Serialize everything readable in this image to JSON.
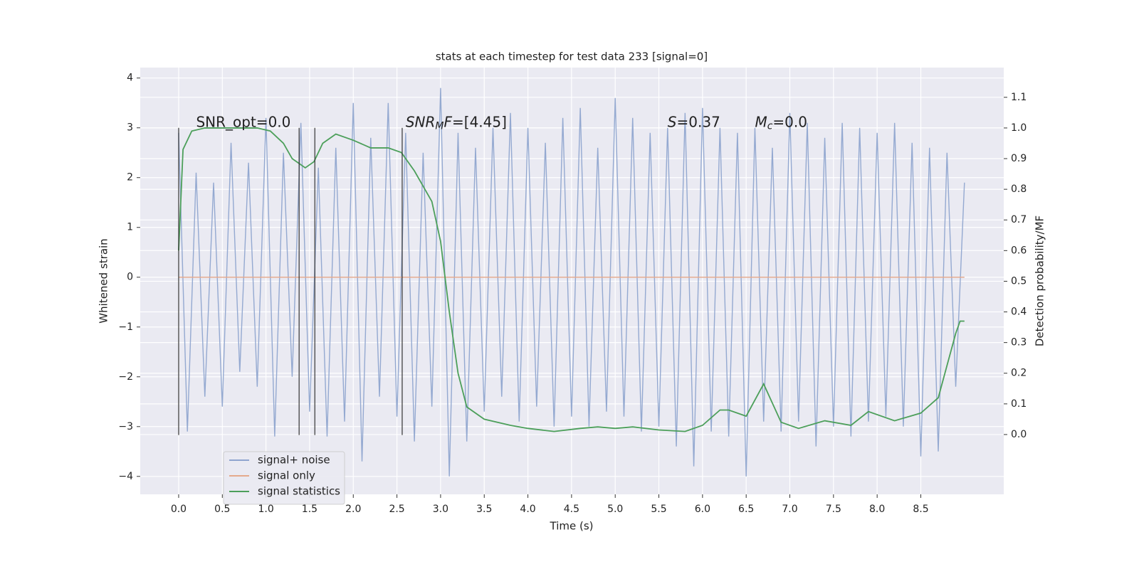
{
  "chart_data": {
    "type": "line",
    "title": "stats at each timestep for test data 233 [signal=0]",
    "xlabel": "Time (s)",
    "ylabel": "Whitened strain",
    "y2label": "Detection probability/MF",
    "xlim": [
      -0.44,
      9.45
    ],
    "ylim": [
      -4.36,
      4.21
    ],
    "y2lim": [
      -0.195,
      1.197
    ],
    "xticks": [
      {
        "value": 0,
        "label": "0.0"
      },
      {
        "value": 0.5,
        "label": "0.5"
      },
      {
        "value": 1,
        "label": "1.0"
      },
      {
        "value": 1.5,
        "label": "1.5"
      },
      {
        "value": 2,
        "label": "2.0"
      },
      {
        "value": 2.5,
        "label": "2.5"
      },
      {
        "value": 3,
        "label": "3.0"
      },
      {
        "value": 3.5,
        "label": "3.5"
      },
      {
        "value": 4,
        "label": "4.0"
      },
      {
        "value": 4.5,
        "label": "4.5"
      },
      {
        "value": 5,
        "label": "5.0"
      },
      {
        "value": 5.5,
        "label": "5.5"
      },
      {
        "value": 6,
        "label": "6.0"
      },
      {
        "value": 6.5,
        "label": "6.5"
      },
      {
        "value": 7,
        "label": "7.0"
      },
      {
        "value": 7.5,
        "label": "7.5"
      },
      {
        "value": 8,
        "label": "8.0"
      },
      {
        "value": 8.5,
        "label": "8.5"
      }
    ],
    "yticks": [
      {
        "value": -4,
        "label": "−4"
      },
      {
        "value": -3,
        "label": "−3"
      },
      {
        "value": -2,
        "label": "−2"
      },
      {
        "value": -1,
        "label": "−1"
      },
      0,
      1,
      2,
      3,
      4
    ],
    "y2ticks": [
      {
        "value": 0,
        "label": "0.0"
      },
      {
        "value": 0.1,
        "label": "0.1"
      },
      {
        "value": 0.2,
        "label": "0.2"
      },
      {
        "value": 0.3,
        "label": "0.3"
      },
      {
        "value": 0.4,
        "label": "0.4"
      },
      {
        "value": 0.5,
        "label": "0.5"
      },
      {
        "value": 0.6,
        "label": "0.6"
      },
      {
        "value": 0.7,
        "label": "0.7"
      },
      {
        "value": 0.8,
        "label": "0.8"
      },
      {
        "value": 0.9,
        "label": "0.9"
      },
      {
        "value": 1,
        "label": "1.0"
      },
      {
        "value": 1.1,
        "label": "1.1"
      }
    ],
    "grid": true,
    "legend": "lower left",
    "series": [
      {
        "name": "signal+ noise",
        "color": "#8fa5cf",
        "x": [
          0,
          0.1,
          0.2,
          0.3,
          0.4,
          0.5,
          0.6,
          0.7,
          0.8,
          0.9,
          1,
          1.1,
          1.2,
          1.3,
          1.4,
          1.5,
          1.6,
          1.7,
          1.8,
          1.9,
          2,
          2.1,
          2.2,
          2.3,
          2.4,
          2.5,
          2.6,
          2.7,
          2.8,
          2.9,
          3,
          3.1,
          3.2,
          3.3,
          3.4,
          3.5,
          3.6,
          3.7,
          3.8,
          3.9,
          4,
          4.1,
          4.2,
          4.3,
          4.4,
          4.5,
          4.6,
          4.7,
          4.8,
          4.9,
          5,
          5.1,
          5.2,
          5.3,
          5.4,
          5.5,
          5.6,
          5.7,
          5.8,
          5.9,
          6,
          6.1,
          6.2,
          6.3,
          6.4,
          6.5,
          6.6,
          6.7,
          6.8,
          6.9,
          7,
          7.1,
          7.2,
          7.3,
          7.4,
          7.5,
          7.6,
          7.7,
          7.8,
          7.9,
          8,
          8.1,
          8.2,
          8.3,
          8.4,
          8.5,
          8.6,
          8.7,
          8.8,
          8.9,
          9
        ],
        "values": [
          2.9,
          -3.1,
          2.1,
          -2.4,
          1.9,
          -2.6,
          2.7,
          -1.9,
          2.3,
          -2.2,
          3.2,
          -3.2,
          2.5,
          -2.0,
          3.1,
          -2.7,
          2.2,
          -3.2,
          2.6,
          -2.9,
          3.5,
          -3.7,
          2.8,
          -2.4,
          3.5,
          -2.8,
          2.9,
          -3.3,
          2.5,
          -2.6,
          3.8,
          -4.0,
          2.9,
          -3.3,
          2.6,
          -2.7,
          3.0,
          -2.4,
          3.3,
          -2.9,
          3.0,
          -2.6,
          2.7,
          -3.0,
          3.2,
          -2.8,
          3.4,
          -3.0,
          2.6,
          -2.7,
          3.6,
          -2.8,
          3.2,
          -3.1,
          2.9,
          -3.0,
          3.0,
          -3.4,
          3.3,
          -3.8,
          3.4,
          -3.1,
          3.0,
          -3.2,
          2.9,
          -4.0,
          3.0,
          -2.9,
          2.6,
          -3.1,
          3.3,
          -2.9,
          3.1,
          -3.4,
          2.8,
          -3.0,
          3.1,
          -3.2,
          3.0,
          -2.9,
          2.9,
          -2.8,
          3.1,
          -3.0,
          2.7,
          -3.6,
          2.6,
          -3.5,
          2.5,
          -2.2,
          1.9
        ]
      },
      {
        "name": "signal only",
        "color": "#e5a98c",
        "x": [
          0,
          9
        ],
        "values": [
          0,
          0
        ]
      },
      {
        "name": "signal statistics",
        "color": "#4c9f5a",
        "axis": "y2",
        "x": [
          0,
          0.05,
          0.15,
          0.3,
          0.6,
          0.9,
          1.05,
          1.2,
          1.3,
          1.45,
          1.55,
          1.65,
          1.8,
          2,
          2.2,
          2.4,
          2.55,
          2.7,
          2.9,
          3,
          3.1,
          3.2,
          3.3,
          3.5,
          3.8,
          4,
          4.3,
          4.6,
          4.8,
          5,
          5.2,
          5.5,
          5.8,
          6,
          6.2,
          6.3,
          6.5,
          6.7,
          6.9,
          7.1,
          7.4,
          7.7,
          7.9,
          8.2,
          8.5,
          8.7,
          8.9,
          8.95,
          9
        ],
        "values": [
          0.6,
          0.93,
          0.99,
          1.0,
          1.0,
          1.0,
          0.99,
          0.95,
          0.9,
          0.87,
          0.89,
          0.95,
          0.98,
          0.96,
          0.935,
          0.935,
          0.92,
          0.86,
          0.76,
          0.63,
          0.4,
          0.2,
          0.09,
          0.05,
          0.03,
          0.02,
          0.01,
          0.02,
          0.025,
          0.02,
          0.025,
          0.015,
          0.01,
          0.03,
          0.08,
          0.08,
          0.06,
          0.165,
          0.04,
          0.02,
          0.045,
          0.03,
          0.075,
          0.045,
          0.07,
          0.12,
          0.33,
          0.37,
          0.37
        ]
      }
    ],
    "vlines": {
      "color": "#333333",
      "x": [
        0,
        1.38,
        1.56,
        2.56
      ],
      "ymin": -3.17,
      "ymax": 3.0
    },
    "annotations": [
      {
        "x": 0.2,
        "y": 3.1,
        "parts": [
          {
            "text": "SNR_opt=0.0",
            "style": "normal"
          }
        ]
      },
      {
        "x": 2.6,
        "y": 3.1,
        "parts": [
          {
            "text": "SNR",
            "style": "italic"
          },
          {
            "text": "M",
            "style": "sub"
          },
          {
            "text": "F",
            "style": "italic"
          },
          {
            "text": "=[4.45]",
            "style": "normal"
          }
        ]
      },
      {
        "x": 5.6,
        "y": 3.1,
        "parts": [
          {
            "text": "S",
            "style": "italic"
          },
          {
            "text": "=0.37",
            "style": "normal"
          }
        ]
      },
      {
        "x": 6.6,
        "y": 3.1,
        "parts": [
          {
            "text": "M",
            "style": "italic"
          },
          {
            "text": "c",
            "style": "sub"
          },
          {
            "text": "=0.0",
            "style": "normal"
          }
        ]
      }
    ]
  }
}
